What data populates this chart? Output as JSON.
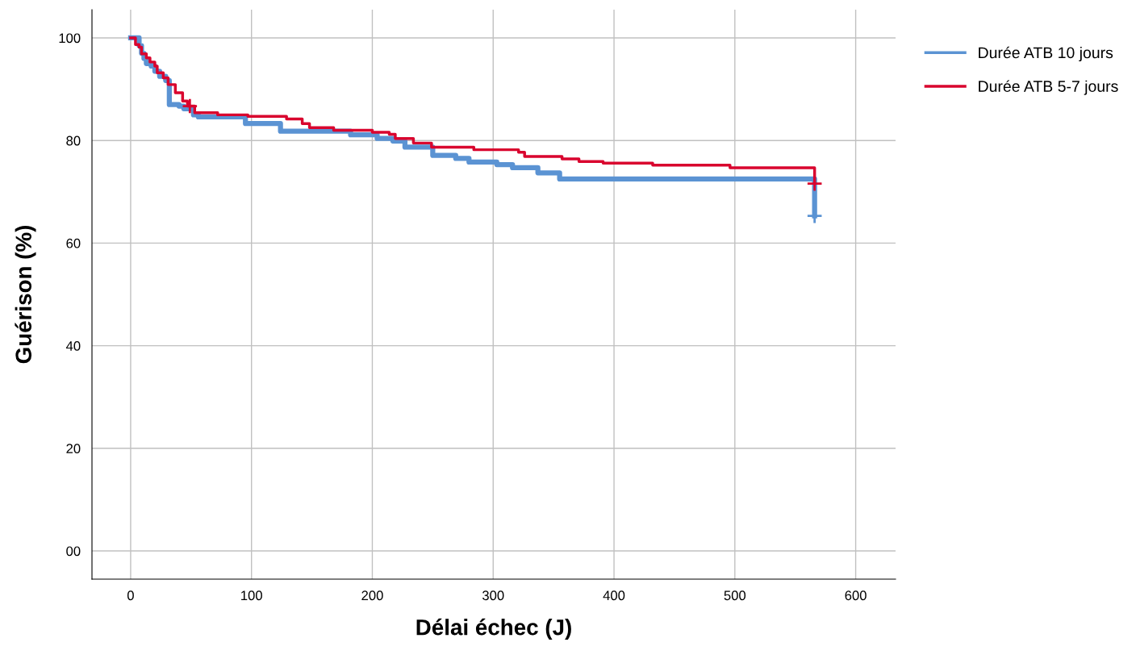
{
  "chart_data": {
    "type": "step",
    "xlabel": "Délai échec (J)",
    "ylabel": "Guérison (%)",
    "xlim": [
      -32,
      633
    ],
    "ylim": [
      -5.5,
      105.5
    ],
    "xticks": [
      0,
      100,
      200,
      300,
      400,
      500,
      600
    ],
    "yticks": [
      {
        "value": 0,
        "label": "00"
      },
      20,
      40,
      60,
      80,
      100
    ],
    "grid": true,
    "legend": "top right",
    "line_style": "solid",
    "series": [
      {
        "name": "Durée ATB 10 jours",
        "color": "#5b93d3",
        "x": [
          0,
          7,
          9,
          11,
          13,
          17,
          20,
          24,
          29,
          32,
          40,
          44,
          52,
          56,
          64,
          95,
          124,
          182,
          204,
          217,
          227,
          250,
          269,
          280,
          303,
          316,
          337,
          355,
          566,
          566
        ],
        "values": [
          100,
          98.5,
          97,
          96,
          95,
          94.5,
          93.5,
          92.5,
          91.7,
          87,
          86.7,
          86.2,
          85.0,
          84.6,
          84.6,
          83.3,
          81.8,
          81.1,
          80.4,
          79.9,
          78.7,
          77.1,
          76.5,
          75.8,
          75.3,
          74.7,
          73.7,
          72.5,
          72.5,
          65.3
        ]
      },
      {
        "name": "Durée ATB 5-7 jours",
        "color": "#d9042e",
        "x": [
          0,
          4,
          7,
          9,
          13,
          16,
          20,
          22,
          27,
          31,
          37,
          43,
          47,
          53,
          72,
          97,
          129,
          142,
          148,
          168,
          200,
          214,
          219,
          234,
          249,
          284,
          321,
          326,
          357,
          371,
          391,
          432,
          496,
          566,
          566
        ],
        "values": [
          100,
          98.7,
          98.2,
          96.9,
          96.1,
          95.3,
          94.5,
          93.2,
          92.2,
          90.9,
          89.3,
          87.7,
          86.7,
          85.4,
          85.0,
          84.7,
          84.2,
          83.3,
          82.5,
          82.0,
          81.6,
          81.2,
          80.4,
          79.5,
          78.7,
          78.2,
          77.7,
          76.9,
          76.4,
          75.9,
          75.6,
          75.2,
          74.7,
          74.7,
          71.6
        ]
      },
      {
        "type": "scatter",
        "marker": "cross",
        "color": "#5b93d3",
        "x": [
          566
        ],
        "values": [
          65.3
        ]
      },
      {
        "type": "scatter",
        "marker": "cross",
        "color": "#d9042e",
        "x": [
          49,
          566
        ],
        "values": [
          86.7,
          71.6
        ]
      }
    ]
  }
}
